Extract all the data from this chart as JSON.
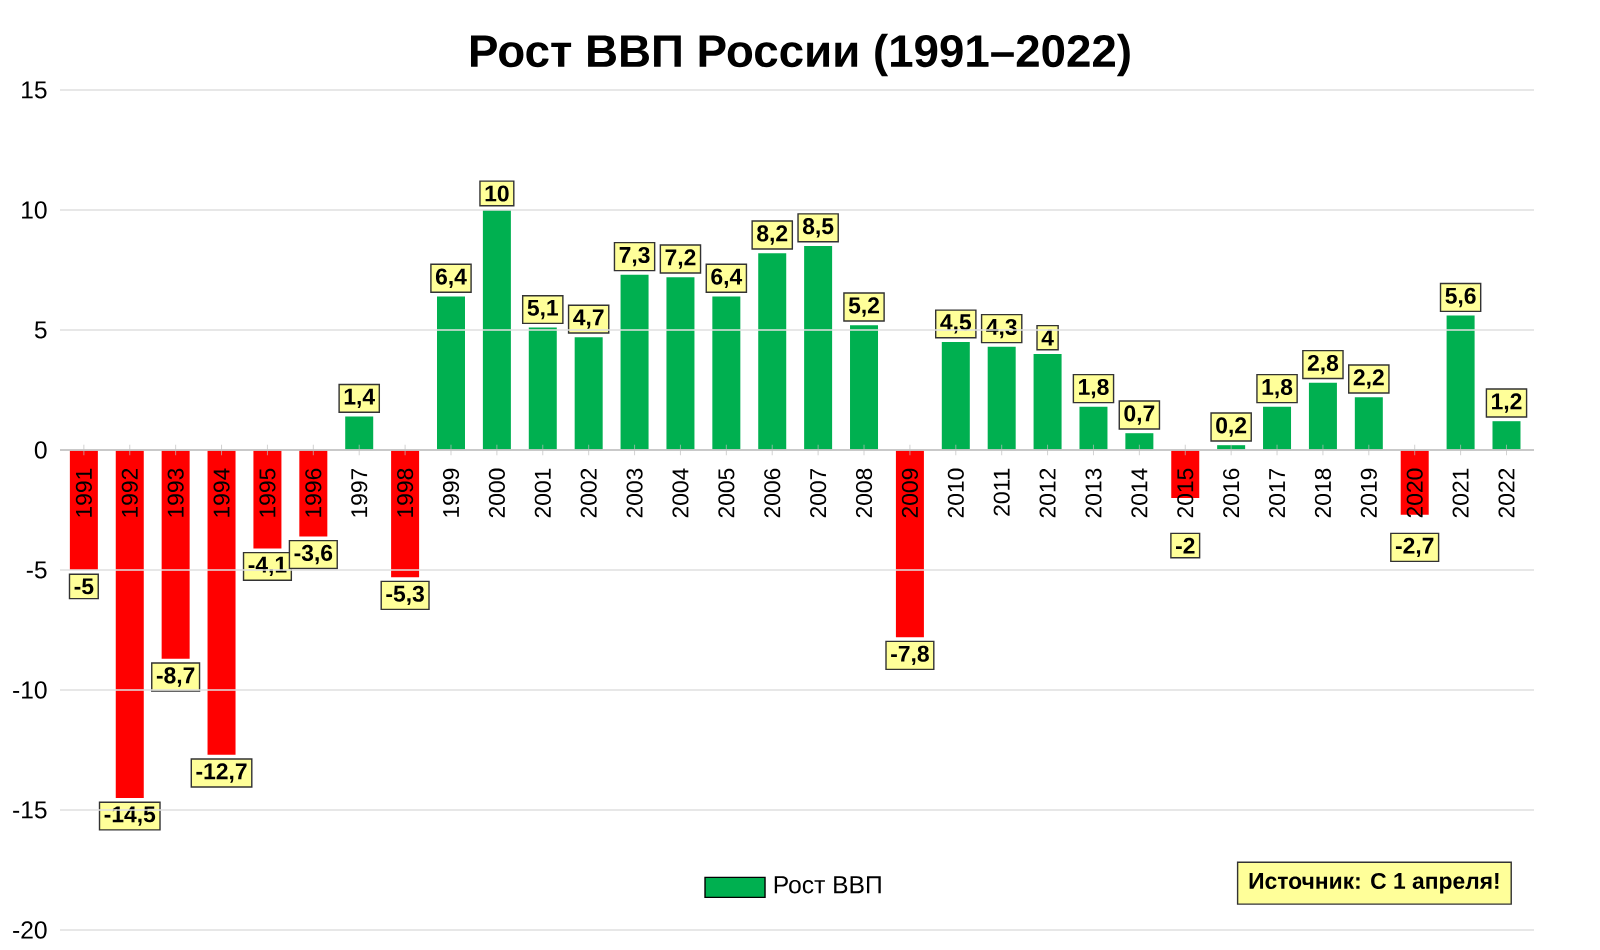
{
  "chart_data": {
    "type": "bar",
    "title": "Рост ВВП России (1991–2022)",
    "categories": [
      "1991",
      "1992",
      "1993",
      "1994",
      "1995",
      "1996",
      "1997",
      "1998",
      "1999",
      "2000",
      "2001",
      "2002",
      "2003",
      "2004",
      "2005",
      "2006",
      "2007",
      "2008",
      "2009",
      "2010",
      "2011",
      "2012",
      "2013",
      "2014",
      "2015",
      "2016",
      "2017",
      "2018",
      "2019",
      "2020",
      "2021",
      "2022"
    ],
    "series": [
      {
        "name": "Рост ВВП",
        "color": "#00b050",
        "values": [
          -5,
          -14.5,
          -8.7,
          -12.7,
          -4.1,
          -3.6,
          1.4,
          -5.3,
          6.4,
          10,
          5.1,
          4.7,
          7.3,
          7.2,
          6.4,
          8.2,
          8.5,
          5.2,
          -7.8,
          4.5,
          4.3,
          4,
          1.8,
          0.7,
          -2,
          0.2,
          1.8,
          2.8,
          2.2,
          -2.7,
          5.6,
          1.2
        ],
        "colors": [
          "#ff0000",
          "#ff0000",
          "#ff0000",
          "#ff0000",
          "#ff0000",
          "#ff0000",
          "#00b050",
          "#ff0000",
          "#00b050",
          "#00b050",
          "#00b050",
          "#00b050",
          "#00b050",
          "#00b050",
          "#00b050",
          "#00b050",
          "#00b050",
          "#00b050",
          "#ff0000",
          "#00b050",
          "#00b050",
          "#00b050",
          "#00b050",
          "#00b050",
          "#ff0000",
          "#00b050",
          "#00b050",
          "#00b050",
          "#00b050",
          "#ff0000",
          "#00b050",
          "#00b050"
        ],
        "value_labels": [
          "-5",
          "-14,5",
          "-8,7",
          "-12,7",
          "-4,1",
          "-3,6",
          "1,4",
          "-5,3",
          "6,4",
          "10",
          "5,1",
          "4,7",
          "7,3",
          "7,2",
          "6,4",
          "8,2",
          "8,5",
          "5,2",
          "-7,8",
          "4,5",
          "4,3",
          "4",
          "1,8",
          "0,7",
          "-2",
          "0,2",
          "1,8",
          "2,8",
          "2,2",
          "-2,7",
          "5,6",
          "1,2"
        ]
      }
    ],
    "ylim": [
      -20,
      15
    ],
    "yticks": [
      -20,
      -15,
      -10,
      -5,
      0,
      5,
      10,
      15
    ],
    "grid": "y",
    "legend": "bottom",
    "annotations": [
      "Источник: С 1 апреля!"
    ]
  }
}
